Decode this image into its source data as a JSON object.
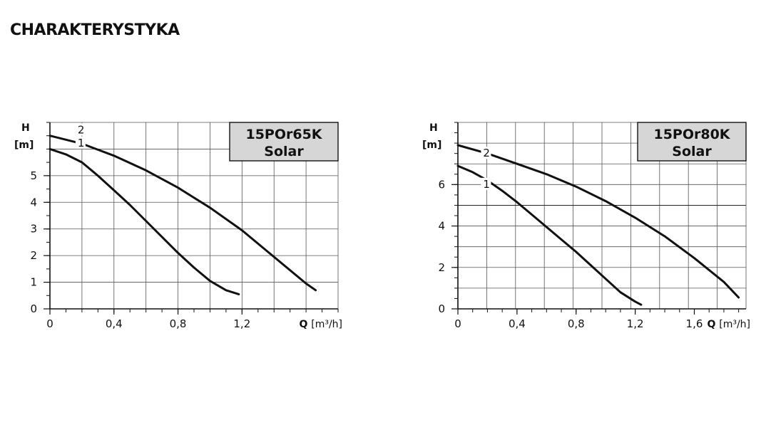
{
  "heading": "CHARAKTERYSTYKA",
  "chart_data": [
    {
      "type": "line",
      "title_line1": "15POr65K",
      "title_line2": "Solar",
      "ylabel_top": "H",
      "ylabel_unit": "[m]",
      "xlabel_prefix": "Q",
      "xlabel_unit": "[m³/h]",
      "xlim": [
        0,
        1.8
      ],
      "ylim": [
        0,
        7
      ],
      "xticks": [
        0,
        0.4,
        0.8,
        1.2
      ],
      "xtick_labels": [
        "0",
        "0,4",
        "0,8",
        "1,2"
      ],
      "yticks": [
        0,
        1,
        2,
        3,
        4,
        5
      ],
      "ytick_labels": [
        "0",
        "1",
        "2",
        "3",
        "4",
        "5"
      ],
      "grid": true,
      "series": [
        {
          "name": "1",
          "x": [
            0,
            0.1,
            0.2,
            0.3,
            0.4,
            0.5,
            0.6,
            0.7,
            0.8,
            0.9,
            1.0,
            1.1,
            1.18
          ],
          "y": [
            6.0,
            5.8,
            5.5,
            5.0,
            4.45,
            3.9,
            3.3,
            2.7,
            2.1,
            1.55,
            1.05,
            0.7,
            0.55
          ]
        },
        {
          "name": "2",
          "x": [
            0,
            0.2,
            0.4,
            0.6,
            0.8,
            1.0,
            1.2,
            1.4,
            1.6,
            1.66
          ],
          "y": [
            6.5,
            6.2,
            5.75,
            5.2,
            4.55,
            3.8,
            2.95,
            1.95,
            0.95,
            0.7
          ]
        }
      ]
    },
    {
      "type": "line",
      "title_line1": "15POr80K",
      "title_line2": "Solar",
      "ylabel_top": "H",
      "ylabel_unit": "[m]",
      "xlabel_prefix": "Q",
      "xlabel_unit": "[m³/h]",
      "xlim": [
        0,
        1.95
      ],
      "ylim": [
        0,
        9
      ],
      "xticks": [
        0,
        0.4,
        0.8,
        1.2,
        1.6
      ],
      "xtick_labels": [
        "0",
        "0,4",
        "0,8",
        "1,2",
        "1,6"
      ],
      "yticks": [
        0,
        2,
        4,
        6
      ],
      "ytick_labels": [
        "0",
        "2",
        "4",
        "6"
      ],
      "grid": true,
      "series": [
        {
          "name": "1",
          "x": [
            0,
            0.1,
            0.2,
            0.3,
            0.4,
            0.5,
            0.6,
            0.7,
            0.8,
            0.9,
            1.0,
            1.1,
            1.2,
            1.24
          ],
          "y": [
            6.9,
            6.6,
            6.2,
            5.7,
            5.15,
            4.55,
            3.95,
            3.35,
            2.75,
            2.1,
            1.45,
            0.8,
            0.35,
            0.2
          ]
        },
        {
          "name": "2",
          "x": [
            0,
            0.2,
            0.4,
            0.6,
            0.8,
            1.0,
            1.2,
            1.4,
            1.6,
            1.8,
            1.9
          ],
          "y": [
            7.9,
            7.5,
            7.0,
            6.5,
            5.9,
            5.2,
            4.4,
            3.5,
            2.45,
            1.3,
            0.55
          ]
        }
      ]
    }
  ]
}
